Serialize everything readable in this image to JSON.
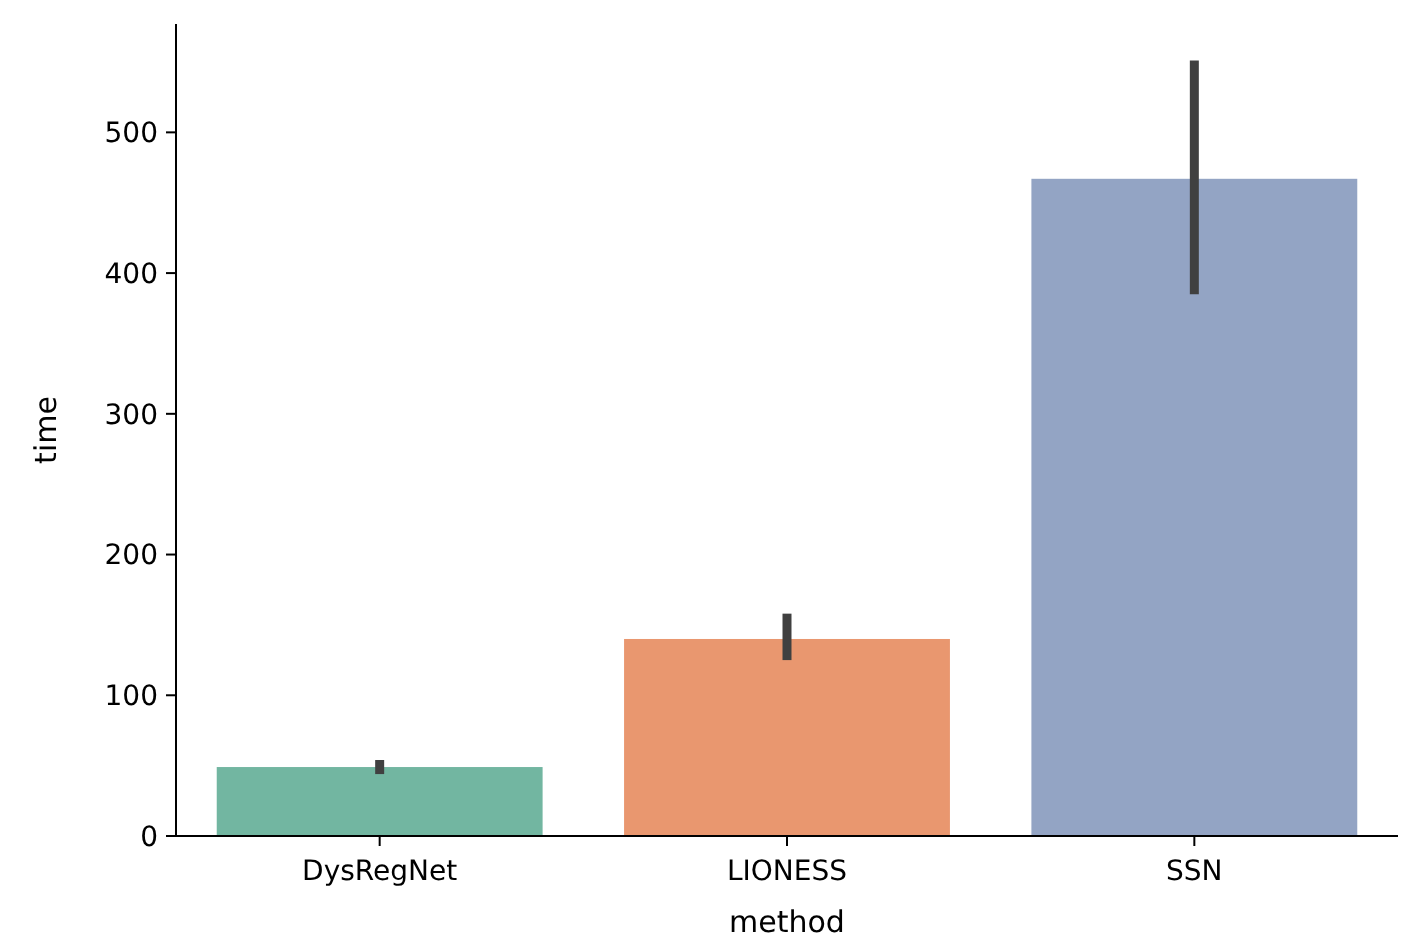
{
  "chart_data": {
    "type": "bar",
    "xlabel": "method",
    "ylabel": "time",
    "categories": [
      "DysRegNet",
      "LIONESS",
      "SSN"
    ],
    "values": [
      49,
      140,
      467
    ],
    "colors": [
      "#72b6a1",
      "#e9976f",
      "#93a4c4"
    ],
    "errors": [
      [
        44,
        54
      ],
      [
        125,
        158
      ],
      [
        385,
        551
      ]
    ],
    "ylim": [
      0,
      577
    ],
    "yticks": [
      0,
      100,
      200,
      300,
      400,
      500
    ],
    "grid": false
  }
}
